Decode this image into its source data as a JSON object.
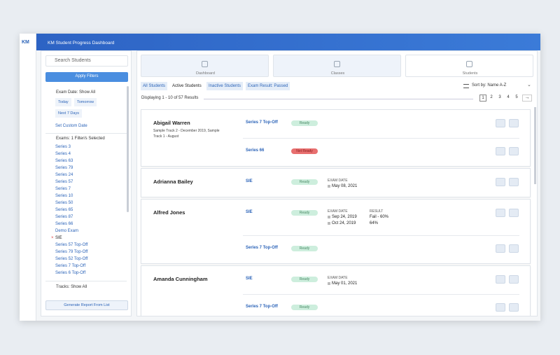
{
  "header": {
    "logo": "KM",
    "title": "KM Student Progress Dashboard"
  },
  "sidebar": {
    "search_placeholder": "Search Students",
    "apply_button": "Apply Filters",
    "exam_date": {
      "label": "Exam Date: Show All",
      "options": [
        "Today",
        "Tomorrow",
        "Next 7 Days"
      ],
      "custom": "Set Custom Date"
    },
    "exams": {
      "label": "Exams: 1 Filter/s Selected",
      "selected_index": 13,
      "items": [
        "Series 3",
        "Series 4",
        "Series 63",
        "Series 79",
        "Series 24",
        "Series 57",
        "Series 7",
        "Series 10",
        "Series 50",
        "Series 65",
        "Series 87",
        "Series 66",
        "Demo Exam",
        "SIE",
        "Series 57 Top-Off",
        "Series 79 Top-Off",
        "Series 52 Top-Off",
        "Series 7 Top-Off",
        "Series 6 Top-Off"
      ]
    },
    "tracks_label": "Tracks: Show All",
    "report_button": "Generate Report From List"
  },
  "tabs": [
    "Dashboard",
    "Classes",
    "Students"
  ],
  "filters": {
    "items": [
      "All Students",
      "Active Students",
      "Inactive Students",
      "Exam Result: Passed"
    ],
    "active_index": 1,
    "sort": "Sort by: Name A-Z"
  },
  "results_text": "Displaying 1 - 10 of 57 Results",
  "pages": [
    1,
    2,
    3,
    4,
    5
  ],
  "students": [
    {
      "name": "Abigail Warren",
      "subtitle": "Sample Track 2 - December 2019, Sample Track 1 - August",
      "exams": [
        {
          "series": "Series 7 Top-Off",
          "status": "Ready",
          "ready": true
        },
        {
          "series": "Series 66",
          "status": "Not Ready",
          "ready": false
        }
      ]
    },
    {
      "name": "Adrianna Bailey",
      "exams": [
        {
          "series": "SIE",
          "status": "Ready",
          "ready": true,
          "date_label": "EXAM DATE",
          "dates": [
            "May 08, 2021"
          ]
        }
      ]
    },
    {
      "name": "Alfred Jones",
      "exams": [
        {
          "series": "SIE",
          "status": "Ready",
          "ready": true,
          "date_label": "EXAM DATE",
          "dates": [
            "Sep 24, 2019",
            "Oct 24, 2019"
          ],
          "result_label": "RESULT",
          "results": [
            "Fail - 60%",
            "64%"
          ]
        },
        {
          "series": "Series 7 Top-Off",
          "status": "Ready",
          "ready": true
        }
      ]
    },
    {
      "name": "Amanda Cunningham",
      "exams": [
        {
          "series": "SIE",
          "status": "Ready",
          "ready": true,
          "date_label": "EXAM DATE",
          "dates": [
            "May 01, 2021"
          ]
        },
        {
          "series": "Series 7 Top-Off",
          "status": "Ready",
          "ready": true
        }
      ]
    }
  ]
}
